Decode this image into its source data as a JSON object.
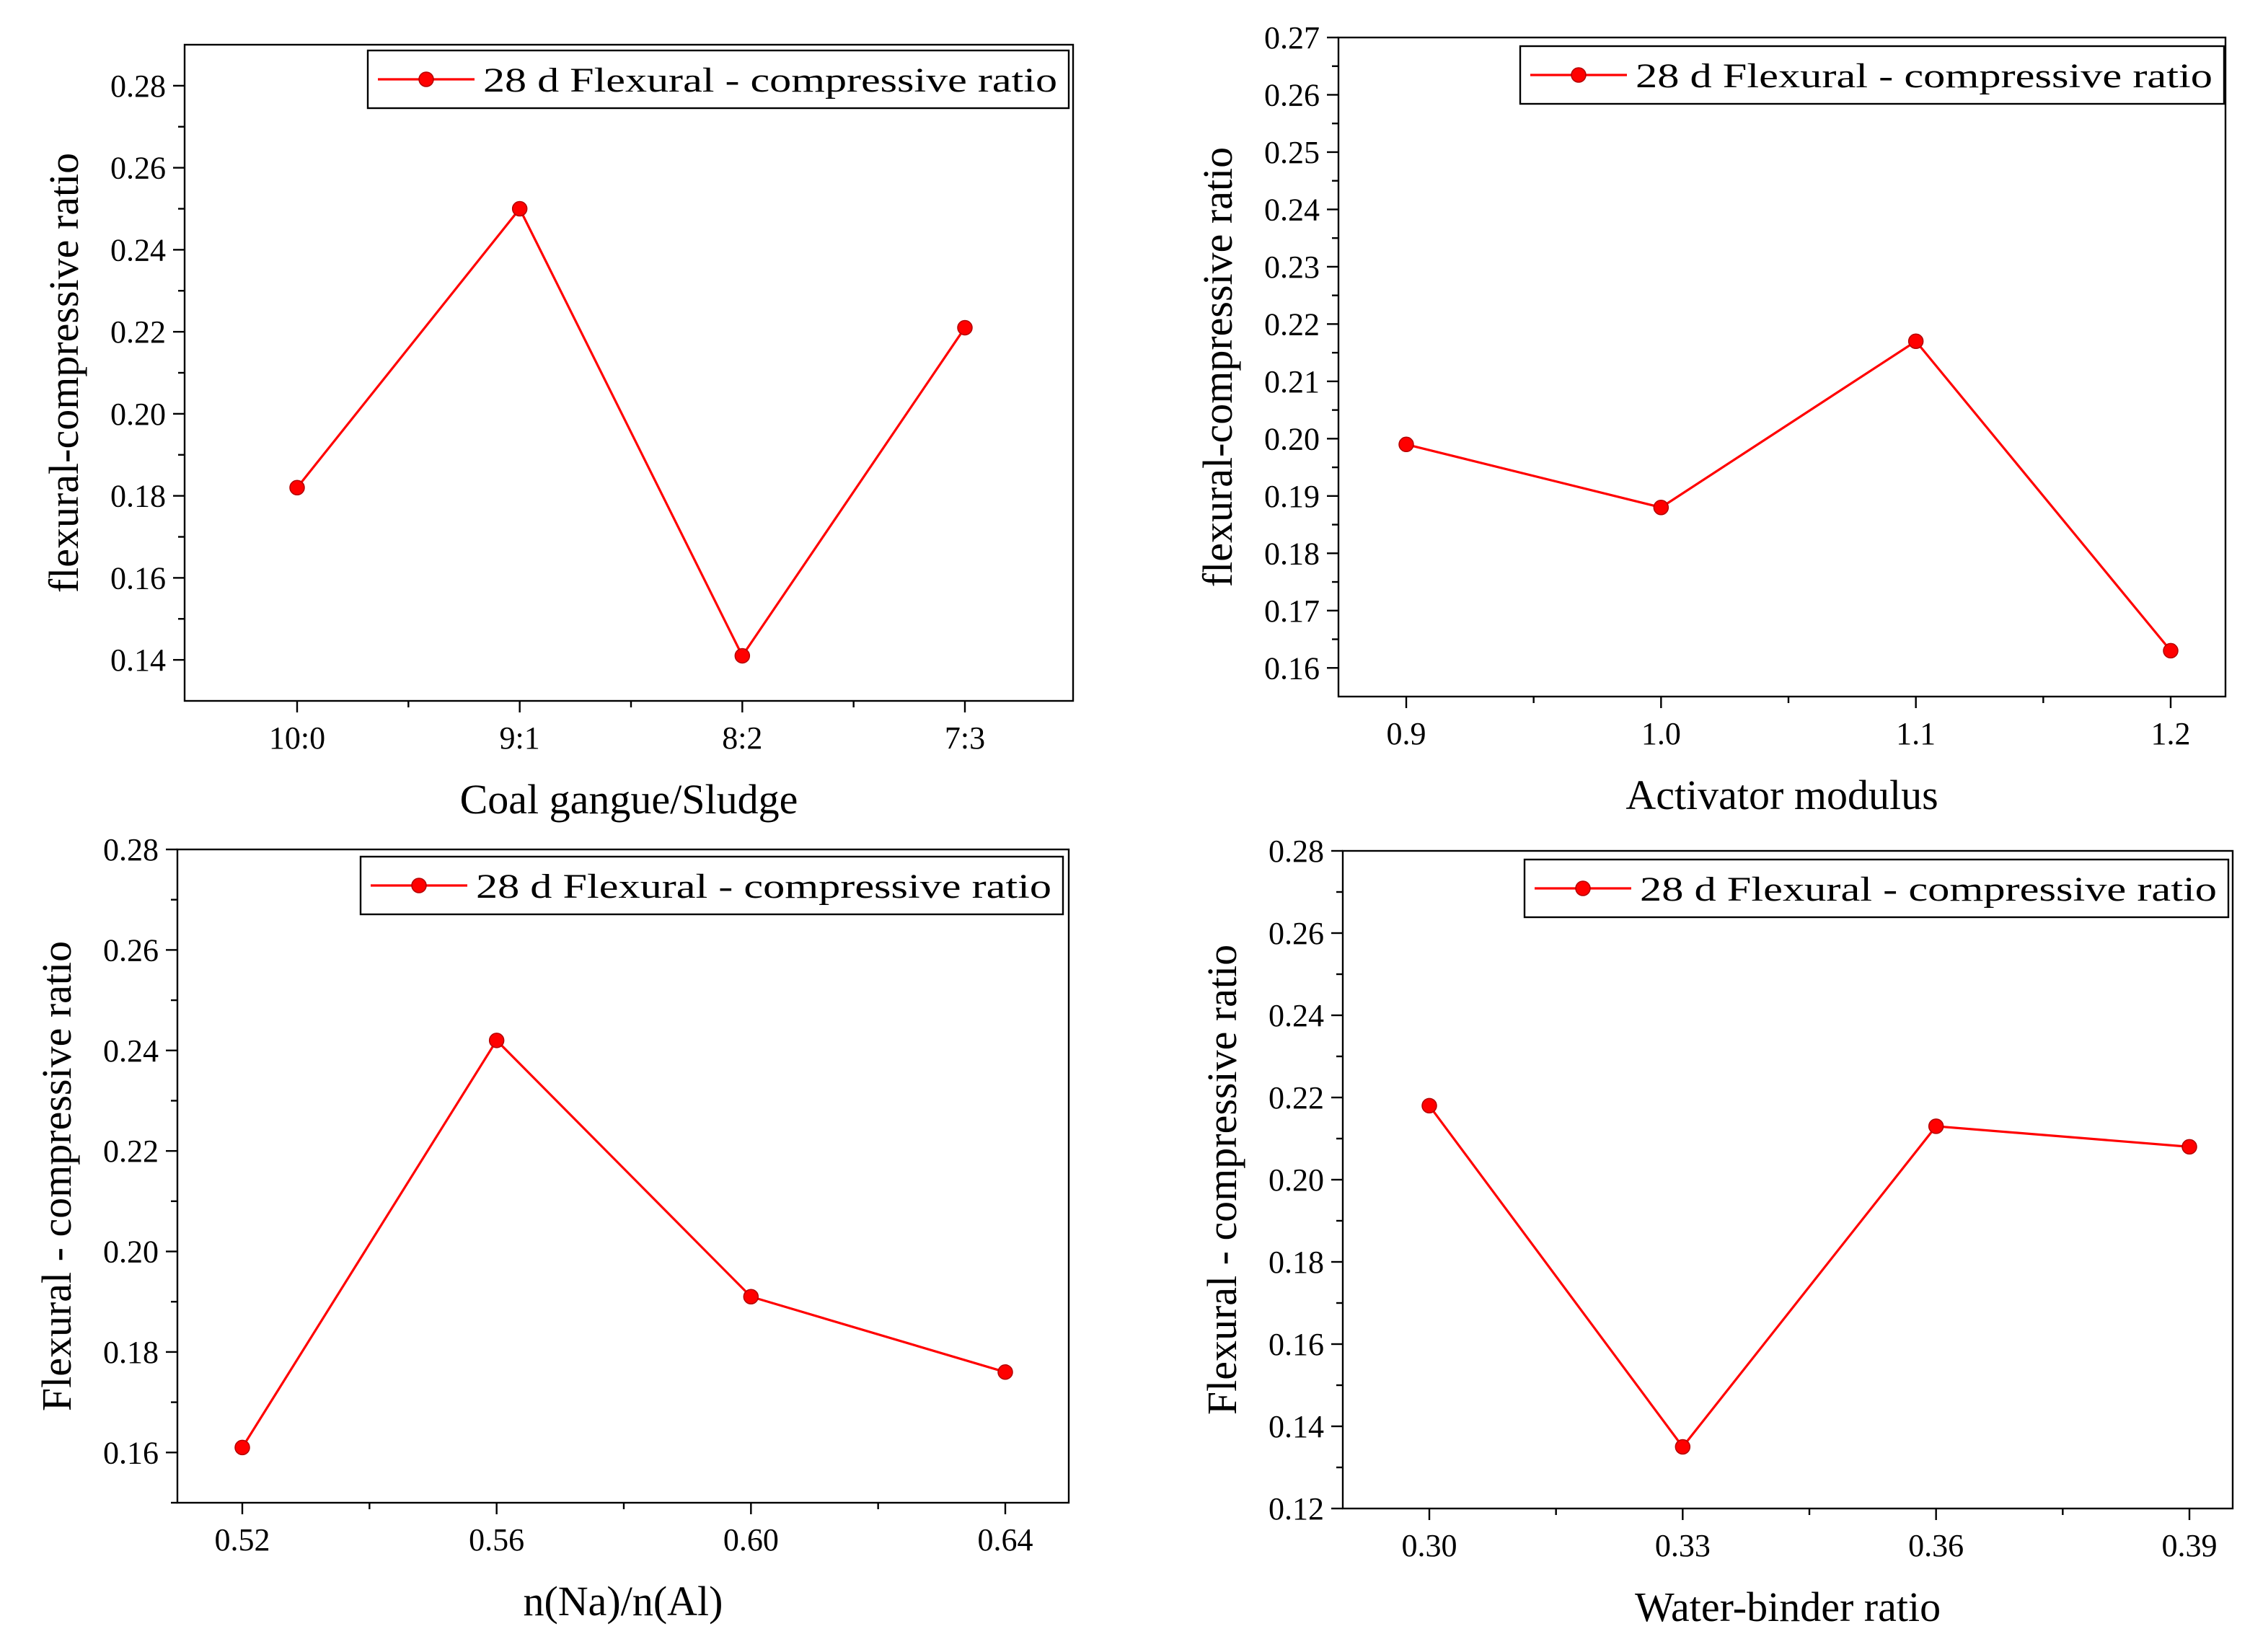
{
  "chart_data": [
    {
      "type": "line",
      "title": "",
      "xlabel": "Coal gangue/Sludge",
      "ylabel": "flexural-compressive ratio",
      "categories": [
        "10:0",
        "9:1",
        "8:2",
        "7:3"
      ],
      "ylim": [
        0.13,
        0.29
      ],
      "yticks": [
        0.14,
        0.16,
        0.18,
        0.2,
        0.22,
        0.24,
        0.26,
        0.28
      ],
      "ytick_decimals": 2,
      "grid": false,
      "legend": "top-right",
      "series": [
        {
          "name": "28 d Flexural - compressive ratio",
          "color": "#ff0000",
          "values": [
            0.182,
            0.25,
            0.141,
            0.221
          ]
        }
      ]
    },
    {
      "type": "line",
      "title": "",
      "xlabel": "Activator modulus",
      "ylabel": "flexural-compressive ratio",
      "categories": [
        "0.9",
        "1.0",
        "1.1",
        "1.2"
      ],
      "ylim": [
        0.155,
        0.27
      ],
      "yticks": [
        0.16,
        0.17,
        0.18,
        0.19,
        0.2,
        0.21,
        0.22,
        0.23,
        0.24,
        0.25,
        0.26,
        0.27
      ],
      "ytick_decimals": 2,
      "grid": false,
      "legend": "top-right",
      "series": [
        {
          "name": "28 d Flexural - compressive ratio",
          "color": "#ff0000",
          "values": [
            0.199,
            0.188,
            0.217,
            0.163
          ]
        }
      ]
    },
    {
      "type": "line",
      "title": "",
      "xlabel": "n(Na)/n(Al)",
      "ylabel": "Flexural - compressive ratio",
      "categories": [
        "0.52",
        "0.56",
        "0.60",
        "0.64"
      ],
      "ylim": [
        0.15,
        0.28
      ],
      "yticks": [
        0.16,
        0.18,
        0.2,
        0.22,
        0.24,
        0.26,
        0.28
      ],
      "ytick_decimals": 2,
      "grid": false,
      "legend": "top-right",
      "series": [
        {
          "name": "28 d Flexural - compressive ratio",
          "color": "#ff0000",
          "values": [
            0.161,
            0.242,
            0.191,
            0.176
          ]
        }
      ]
    },
    {
      "type": "line",
      "title": "",
      "xlabel": "Water-binder ratio",
      "ylabel": "Flexural - compressive ratio",
      "categories": [
        "0.30",
        "0.33",
        "0.36",
        "0.39"
      ],
      "ylim": [
        0.12,
        0.28
      ],
      "yticks": [
        0.12,
        0.14,
        0.16,
        0.18,
        0.2,
        0.22,
        0.24,
        0.26,
        0.28
      ],
      "ytick_decimals": 2,
      "grid": false,
      "legend": "top-right",
      "series": [
        {
          "name": "28 d Flexural - compressive ratio",
          "color": "#ff0000",
          "values": [
            0.218,
            0.135,
            0.213,
            0.208
          ]
        }
      ]
    }
  ]
}
